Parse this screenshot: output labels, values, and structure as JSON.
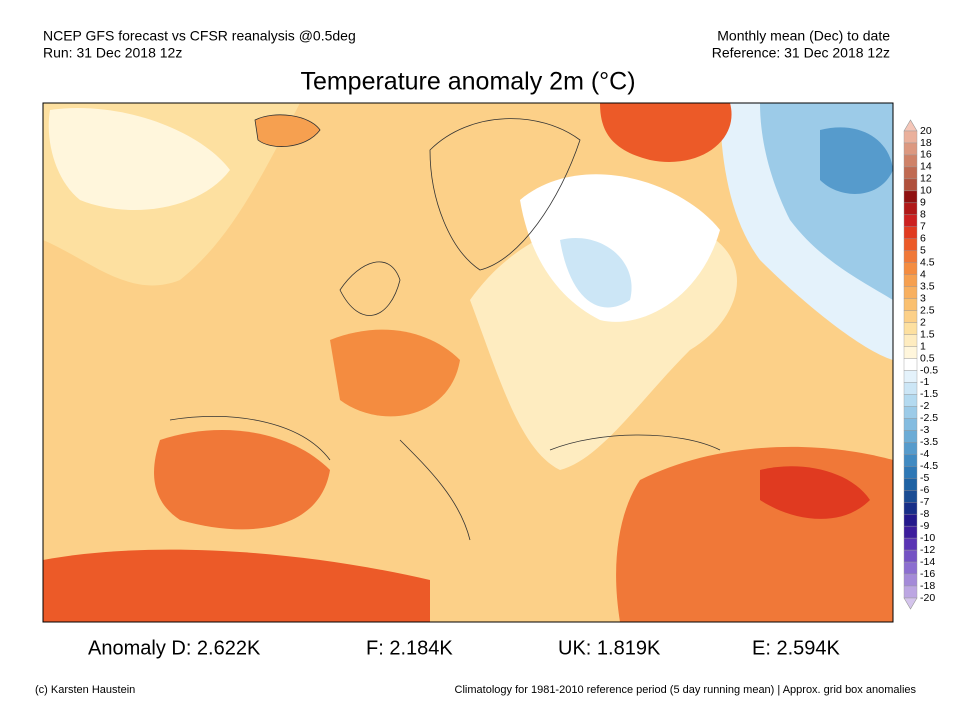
{
  "header": {
    "left": [
      "NCEP GFS forecast vs CFSR reanalysis @0.5deg",
      "Run: 31 Dec 2018 12z"
    ],
    "right": [
      "Monthly mean (Dec) to date",
      "Reference: 31 Dec 2018 12z"
    ]
  },
  "title": "Temperature anomaly 2m (°C)",
  "colorbar": {
    "labels": [
      20,
      18,
      16,
      14,
      12,
      10,
      9,
      8,
      7,
      6,
      5,
      4.5,
      4,
      3.5,
      3,
      2.5,
      2,
      1.5,
      1,
      0.5,
      -0.5,
      -1,
      -1.5,
      -2,
      -2.5,
      -3,
      -3.5,
      -4,
      -4.5,
      -5,
      -6,
      -7,
      -8,
      -9,
      -10,
      -12,
      -14,
      -16,
      -18,
      -20
    ],
    "colors": [
      "#f5c6b8",
      "#eab09c",
      "#dc9880",
      "#cf8268",
      "#c06a52",
      "#b0503c",
      "#8f1010",
      "#b01818",
      "#cc2020",
      "#e03a20",
      "#ec5a28",
      "#f07838",
      "#f48c40",
      "#f6a050",
      "#f8b060",
      "#fac070",
      "#fcd088",
      "#fde0a0",
      "#feecc0",
      "#fff6dc",
      "#ffffff",
      "#e4f2fb",
      "#cce6f6",
      "#b4daf0",
      "#9ccbe8",
      "#84bce0",
      "#6cacd6",
      "#569bcc",
      "#408ac2",
      "#2e78b6",
      "#1e62a4",
      "#1a4c94",
      "#182e88",
      "#24188c",
      "#3c1c9c",
      "#5a34b4",
      "#7452c4",
      "#8c6ed0",
      "#a48ad8",
      "#bca6e2",
      "#d4c4ec"
    ]
  },
  "anomalies": [
    "Anomaly D: 2.622K",
    "F: 2.184K",
    "UK: 1.819K",
    "E: 2.594K"
  ],
  "footer": {
    "left": "(c) Karsten Haustein",
    "right": "Climatology for 1981-2010 reference period (5 day running mean) | Approx. grid box anomalies"
  }
}
